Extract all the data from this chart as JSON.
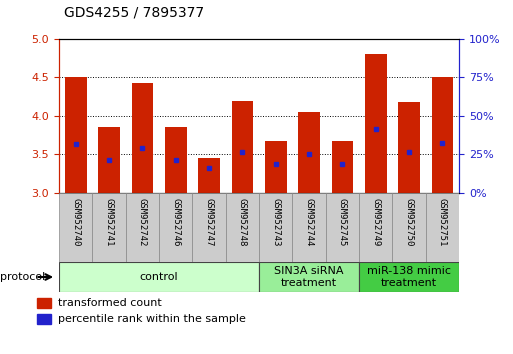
{
  "title": "GDS4255 / 7895377",
  "samples": [
    "GSM952740",
    "GSM952741",
    "GSM952742",
    "GSM952746",
    "GSM952747",
    "GSM952748",
    "GSM952743",
    "GSM952744",
    "GSM952745",
    "GSM952749",
    "GSM952750",
    "GSM952751"
  ],
  "bar_tops": [
    4.5,
    3.86,
    4.43,
    3.86,
    3.45,
    4.2,
    3.67,
    4.05,
    3.67,
    4.8,
    4.18,
    4.5
  ],
  "blue_positions": [
    3.63,
    3.43,
    3.58,
    3.43,
    3.33,
    3.53,
    3.38,
    3.5,
    3.38,
    3.83,
    3.53,
    3.65
  ],
  "y_min": 3.0,
  "y_max": 5.0,
  "bar_color": "#cc2200",
  "blue_color": "#2222cc",
  "bar_width": 0.65,
  "protocol_groups": [
    {
      "label": "control",
      "start": 0,
      "end": 6,
      "color": "#ccffcc"
    },
    {
      "label": "SIN3A siRNA\ntreatment",
      "start": 6,
      "end": 9,
      "color": "#99ee99"
    },
    {
      "label": "miR-138 mimic\ntreatment",
      "start": 9,
      "end": 12,
      "color": "#44cc44"
    }
  ],
  "legend_items": [
    {
      "label": "transformed count",
      "color": "#cc2200"
    },
    {
      "label": "percentile rank within the sample",
      "color": "#2222cc"
    }
  ],
  "left_y_color": "#cc2200",
  "right_y_color": "#2222cc",
  "title_fontsize": 10,
  "tick_fontsize": 8,
  "sample_fontsize": 6.5,
  "proto_fontsize": 8,
  "legend_fontsize": 8
}
